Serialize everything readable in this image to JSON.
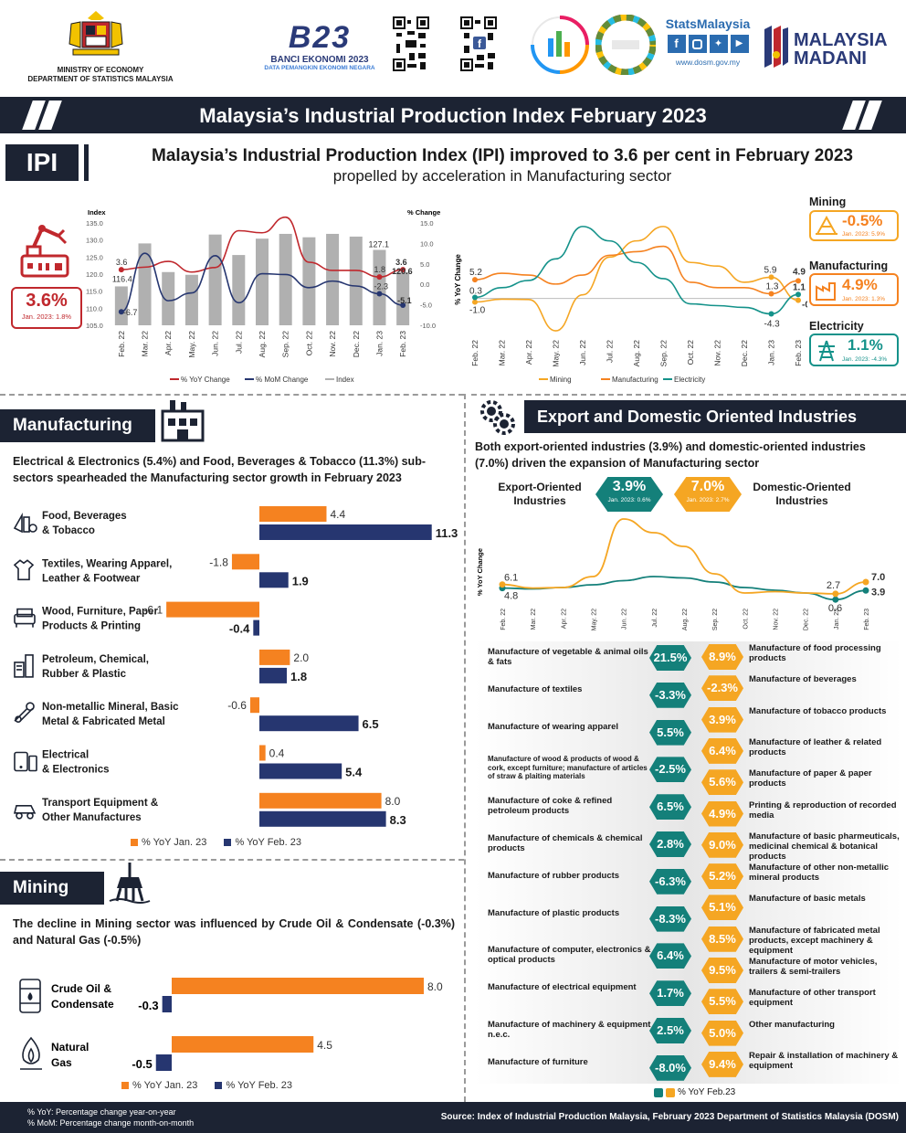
{
  "header": {
    "ministry_line1": "MINISTRY OF ECONOMY",
    "ministry_line2": "DEPARTMENT OF STATISTICS MALAYSIA",
    "banci_title": "BANCI EKONOMI 2023",
    "banci_subtitle": "DATA PEMANGKIN EKONOMI NEGARA",
    "banci_logo": "B23",
    "stats_brand": "StatsMalaysia",
    "stats_url": "www.dosm.gov.my",
    "madani_line1": "MALAYSIA",
    "madani_line2": "MADANI",
    "main_title": "Malaysia’s Industrial Production Index February 2023"
  },
  "ipi": {
    "tag": "IPI",
    "headline_l1": "Malaysia’s Industrial Production Index (IPI) improved to 3.6 per cent in February 2023",
    "headline_l2": "propelled by acceleration in Manufacturing sector",
    "badge_value": "3.6%",
    "badge_sub": "Jan. 2023: 1.8%"
  },
  "sector_cards": {
    "mining_title": "Mining",
    "mining_value": "-0.5%",
    "mining_sub": "Jan. 2023: 5.9%",
    "manufacturing_title": "Manufacturing",
    "manufacturing_value": "4.9%",
    "manufacturing_sub": "Jan. 2023: 1.3%",
    "electricity_title": "Electricity",
    "electricity_value": "1.1%",
    "electricity_sub": "Jan. 2023: -4.3%"
  },
  "manufacturing": {
    "title": "Manufacturing",
    "text": "Electrical & Electronics (5.4%) and Food, Beverages & Tobacco (11.3%) sub-sectors spearheaded the Manufacturing sector growth in February 2023",
    "legend_jan": "% YoY Jan. 23",
    "legend_feb": "% YoY Feb. 23"
  },
  "mining": {
    "title": "Mining",
    "text": "The decline in Mining sector was influenced by Crude Oil & Condensate (-0.3%) and Natural Gas (-0.5%)",
    "legend_jan": "% YoY Jan. 23",
    "legend_feb": "% YoY Feb. 23"
  },
  "export": {
    "title": "Export and Domestic Oriented Industries",
    "text": "Both export-oriented industries (3.9%) and domestic-oriented industries (7.0%) driven the expansion of Manufacturing sector",
    "export_label": "Export-Oriented Industries",
    "domestic_label": "Domestic-Oriented Industries",
    "export_value": "3.9%",
    "export_sub": "Jan. 2023: 0.6%",
    "domestic_value": "7.0%",
    "domestic_sub": "Jan. 2023: 2.7%",
    "legend": "% YoY Feb.23"
  },
  "footer": {
    "note1": "% YoY: Percentage change year-on-year",
    "note2": "% MoM: Percentage change month-on-month",
    "source": "Source: Index of Industrial Production Malaysia, February 2023 Department of Statistics Malaysia (DOSM)"
  },
  "colors": {
    "navy": "#1c2333",
    "orange": "#f58220",
    "teal": "#14807a",
    "gold": "#f5a623",
    "red": "#c0282d",
    "darkblue": "#263670",
    "grey": "#b0b0b0"
  },
  "chart_data": [
    {
      "type": "bar",
      "categories": [
        "Feb. 22",
        "Mar. 22",
        "Apr. 22",
        "May. 22",
        "Jun. 22",
        "Jul. 22",
        "Aug. 22",
        "Sep. 22",
        "Oct. 22",
        "Nov. 22",
        "Dec. 22",
        "Jan. 23",
        "Feb. 23"
      ],
      "ylabel": "Index",
      "y2label": "% Change",
      "ylim": [
        105,
        135
      ],
      "y2lim": [
        -10,
        15
      ],
      "yticks": [
        "135.0",
        "130.0",
        "125.0",
        "120.0",
        "115.0",
        "110.0",
        "105.0"
      ],
      "y2ticks": [
        "15.0",
        "10.0",
        "5.0",
        "0.0",
        "-5.0",
        "-10.0"
      ],
      "series": [
        {
          "name": "Index",
          "kind": "bar",
          "values": [
            116.4,
            129.0,
            120.6,
            119.8,
            131.6,
            125.6,
            130.4,
            131.8,
            130.8,
            131.8,
            131.0,
            127.1,
            120.6
          ]
        },
        {
          "name": "% YoY Change",
          "kind": "line",
          "values": [
            3.6,
            4.2,
            5.6,
            3.0,
            4.1,
            13.1,
            12.6,
            16.4,
            5.4,
            3.4,
            3.4,
            1.8,
            3.6
          ]
        },
        {
          "name": "% MoM Change",
          "kind": "line",
          "values": [
            -6.7,
            7.6,
            -4.0,
            -2.1,
            7.0,
            -4.5,
            2.6,
            2.4,
            -0.8,
            0.8,
            -0.4,
            -2.3,
            -5.1
          ]
        }
      ],
      "labels": {
        "index_first": "116.4",
        "index_jan": "127.1",
        "index_feb": "120.6",
        "yoy_first": "3.6",
        "yoy_jan": "1.8",
        "yoy_feb": "3.6",
        "mom_first": "-6.7",
        "mom_jan": "-2.3",
        "mom_feb": "-5.1"
      },
      "legend": [
        "% YoY Change",
        "% MoM Change",
        "Index"
      ]
    },
    {
      "type": "line",
      "ylabel": "% YoY Change",
      "categories": [
        "Feb. 22",
        "Mar. 22",
        "Apr. 22",
        "May. 22",
        "Jun. 22",
        "Jul. 22",
        "Aug. 22",
        "Sep. 22",
        "Oct. 22",
        "Nov. 22",
        "Dec. 22",
        "Jan. 23",
        "Feb. 23"
      ],
      "ylim": [
        -10,
        22
      ],
      "series": [
        {
          "name": "Mining",
          "values": [
            -1.0,
            -0.2,
            -0.3,
            -9.0,
            1.0,
            11.5,
            16.0,
            20.0,
            10.0,
            9.0,
            4.5,
            5.9,
            -0.5
          ]
        },
        {
          "name": "Manufacturing",
          "values": [
            5.2,
            7.0,
            6.5,
            4.0,
            6.5,
            12.0,
            13.0,
            14.5,
            4.5,
            3.0,
            3.0,
            1.3,
            4.9
          ]
        },
        {
          "name": "Electricity",
          "values": [
            0.3,
            3.0,
            5.0,
            11.0,
            20.0,
            16.0,
            10.0,
            5.5,
            -1.5,
            -2.0,
            -2.5,
            -4.3,
            1.1
          ]
        }
      ],
      "labels": {
        "mfg_first": "5.2",
        "ele_first": "0.3",
        "min_first": "-1.0",
        "min_jan": "5.9",
        "min_feb": "-0.5",
        "mfg_jan": "1.3",
        "mfg_feb": "4.9",
        "ele_jan": "-4.3",
        "ele_feb": "1.1"
      }
    },
    {
      "type": "bar",
      "orientation": "horizontal",
      "categories": [
        "Food, Beverages & Tobacco",
        "Textiles, Wearing Apparel, Leather & Footwear",
        "Wood, Furniture, Paper Products & Printing",
        "Petroleum, Chemical, Rubber & Plastic",
        "Non-metallic Mineral, Basic Metal & Fabricated Metal",
        "Electrical & Electronics",
        "Transport Equipment & Other Manufactures"
      ],
      "category_lines": [
        [
          "Food, Beverages",
          "& Tobacco"
        ],
        [
          "Textiles, Wearing Apparel,",
          "Leather & Footwear"
        ],
        [
          "Wood, Furniture, Paper",
          "Products & Printing"
        ],
        [
          "Petroleum, Chemical,",
          "Rubber & Plastic"
        ],
        [
          "Non-metallic Mineral, Basic",
          "Metal & Fabricated Metal"
        ],
        [
          "Electrical",
          "& Electronics"
        ],
        [
          "Transport Equipment &",
          "Other Manufactures"
        ]
      ],
      "series": [
        {
          "name": "% YoY Jan. 23",
          "values": [
            4.4,
            -1.8,
            -6.1,
            2.0,
            -0.6,
            0.4,
            8.0
          ]
        },
        {
          "name": "% YoY Feb. 23",
          "values": [
            11.3,
            1.9,
            -0.4,
            1.8,
            6.5,
            5.4,
            8.3
          ]
        }
      ]
    },
    {
      "type": "bar",
      "orientation": "horizontal",
      "categories": [
        "Crude Oil & Condensate",
        "Natural Gas"
      ],
      "category_lines": [
        [
          "Crude Oil &",
          "Condensate"
        ],
        [
          "Natural",
          "Gas"
        ]
      ],
      "series": [
        {
          "name": "% YoY Jan. 23",
          "values": [
            8.0,
            4.5
          ]
        },
        {
          "name": "% YoY Feb. 23",
          "values": [
            -0.3,
            -0.5
          ]
        }
      ]
    },
    {
      "type": "line",
      "ylabel": "% YoY Change",
      "categories": [
        "Feb. 22",
        "Mar. 22",
        "Apr. 22",
        "May. 22",
        "Jun. 22",
        "Jul. 22",
        "Aug. 22",
        "Sep. 22",
        "Oct. 22",
        "Nov. 22",
        "Dec. 22",
        "Jan. 23",
        "Feb. 23"
      ],
      "ylim": [
        -2,
        32
      ],
      "series": [
        {
          "name": "Export-Oriented Industries",
          "values": [
            4.8,
            4.5,
            5.0,
            6.0,
            7.5,
            9.0,
            8.5,
            7.0,
            5.0,
            4.0,
            3.0,
            0.6,
            3.9
          ]
        },
        {
          "name": "Domestic-Oriented Industries",
          "values": [
            6.1,
            4.8,
            5.0,
            9.0,
            30.0,
            25.0,
            20.0,
            10.0,
            3.0,
            3.5,
            3.0,
            2.7,
            7.0
          ]
        }
      ],
      "labels": {
        "dom_first": "6.1",
        "exp_first": "4.8",
        "dom_jan": "2.7",
        "exp_jan": "0.6",
        "dom_feb": "7.0",
        "exp_feb": "3.9"
      }
    },
    {
      "type": "table",
      "export_industries": [
        {
          "name": "Manufacture of vegetable & animal oils & fats",
          "value": "21.5%"
        },
        {
          "name": "Manufacture of textiles",
          "value": "-3.3%"
        },
        {
          "name": "Manufacture of wearing apparel",
          "value": "5.5%"
        },
        {
          "name": "Manufacture of wood & products of wood & cork, except furniture; manufacture of articles of straw & plaiting materials",
          "value": "-2.5%"
        },
        {
          "name": "Manufacture of coke & refined petroleum products",
          "value": "6.5%"
        },
        {
          "name": "Manufacture of chemicals & chemical products",
          "value": "2.8%"
        },
        {
          "name": "Manufacture of rubber products",
          "value": "-6.3%"
        },
        {
          "name": "Manufacture of plastic products",
          "value": "-8.3%"
        },
        {
          "name": "Manufacture of computer, electronics & optical products",
          "value": "6.4%"
        },
        {
          "name": "Manufacture of electrical equipment",
          "value": "1.7%"
        },
        {
          "name": "Manufacture of machinery & equipment n.e.c.",
          "value": "2.5%"
        },
        {
          "name": "Manufacture of furniture",
          "value": "-8.0%"
        }
      ],
      "domestic_industries": [
        {
          "name": "Manufacture of food processing products",
          "value": "8.9%"
        },
        {
          "name": "Manufacture of beverages",
          "value": "-2.3%"
        },
        {
          "name": "Manufacture of tobacco products",
          "value": "3.9%"
        },
        {
          "name": "Manufacture of leather & related products",
          "value": "6.4%"
        },
        {
          "name": "Manufacture of paper & paper products",
          "value": "5.6%"
        },
        {
          "name": "Printing & reproduction of recorded media",
          "value": "4.9%"
        },
        {
          "name": "Manufacture of basic pharmeuticals, medicinal chemical & botanical products",
          "value": "9.0%"
        },
        {
          "name": "Manufacture of other non-metallic mineral products",
          "value": "5.2%"
        },
        {
          "name": "Manufacture of basic metals",
          "value": "5.1%"
        },
        {
          "name": "Manufacture of fabricated metal products, except machinery & equipment",
          "value": "8.5%"
        },
        {
          "name": "Manufacture of motor vehicles, trailers & semi-trailers",
          "value": "9.5%"
        },
        {
          "name": "Manufacture of other transport equipment",
          "value": "5.5%"
        },
        {
          "name": "Other manufacturing",
          "value": "5.0%"
        },
        {
          "name": "Repair & installation of machinery & equipment",
          "value": "9.4%"
        }
      ]
    }
  ]
}
